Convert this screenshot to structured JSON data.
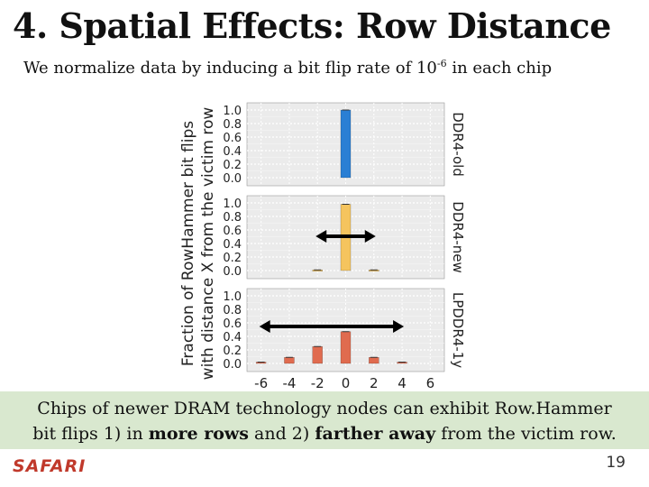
{
  "slide": {
    "title": "4. Spatial Effects: Row Distance",
    "subtitle_prefix": "We normalize data by inducing a bit flip rate of 10",
    "subtitle_exponent": "-6",
    "subtitle_suffix": " in each chip",
    "callout_line1": "Chips of newer DRAM technology nodes can exhibit Row.Hammer",
    "callout_line2_a": "bit flips 1) in ",
    "callout_line2_b": "more rows",
    "callout_line2_c": " and 2) ",
    "callout_line2_d": "farther away",
    "callout_line2_e": " from the victim row.",
    "logo": "SAFARI",
    "page_number": "19"
  },
  "chart_data": {
    "type": "bar",
    "ylabel_line1": "Fraction of RowHammer bit flips",
    "ylabel_line2": "with distance X from the victim row",
    "x_ticks": [
      "-6",
      "-4",
      "-2",
      "0",
      "2",
      "4",
      "6"
    ],
    "xlim": [
      -7,
      7
    ],
    "ylim": [
      0,
      1
    ],
    "y_ticks": [
      "0.0",
      "0.2",
      "0.4",
      "0.6",
      "0.8",
      "1.0"
    ],
    "y_ticks_odd": [
      "0.1",
      "0.3",
      "0.5",
      "0.7",
      "0.9"
    ],
    "grid": true,
    "panels": [
      {
        "name": "DDR4-old",
        "color": "#2a7fd4",
        "x": [
          0
        ],
        "values": [
          1.0
        ]
      },
      {
        "name": "DDR4-new",
        "color": "#f5c45e",
        "x": [
          -2,
          0,
          2
        ],
        "values": [
          0.01,
          0.98,
          0.01
        ],
        "arrow_span": [
          -2,
          2
        ]
      },
      {
        "name": "LPDDR4-1y",
        "color": "#e06b4f",
        "x": [
          -6,
          -4,
          -2,
          0,
          2,
          4
        ],
        "values": [
          0.02,
          0.09,
          0.25,
          0.47,
          0.09,
          0.02
        ],
        "arrow_span": [
          -6,
          4
        ]
      }
    ]
  }
}
